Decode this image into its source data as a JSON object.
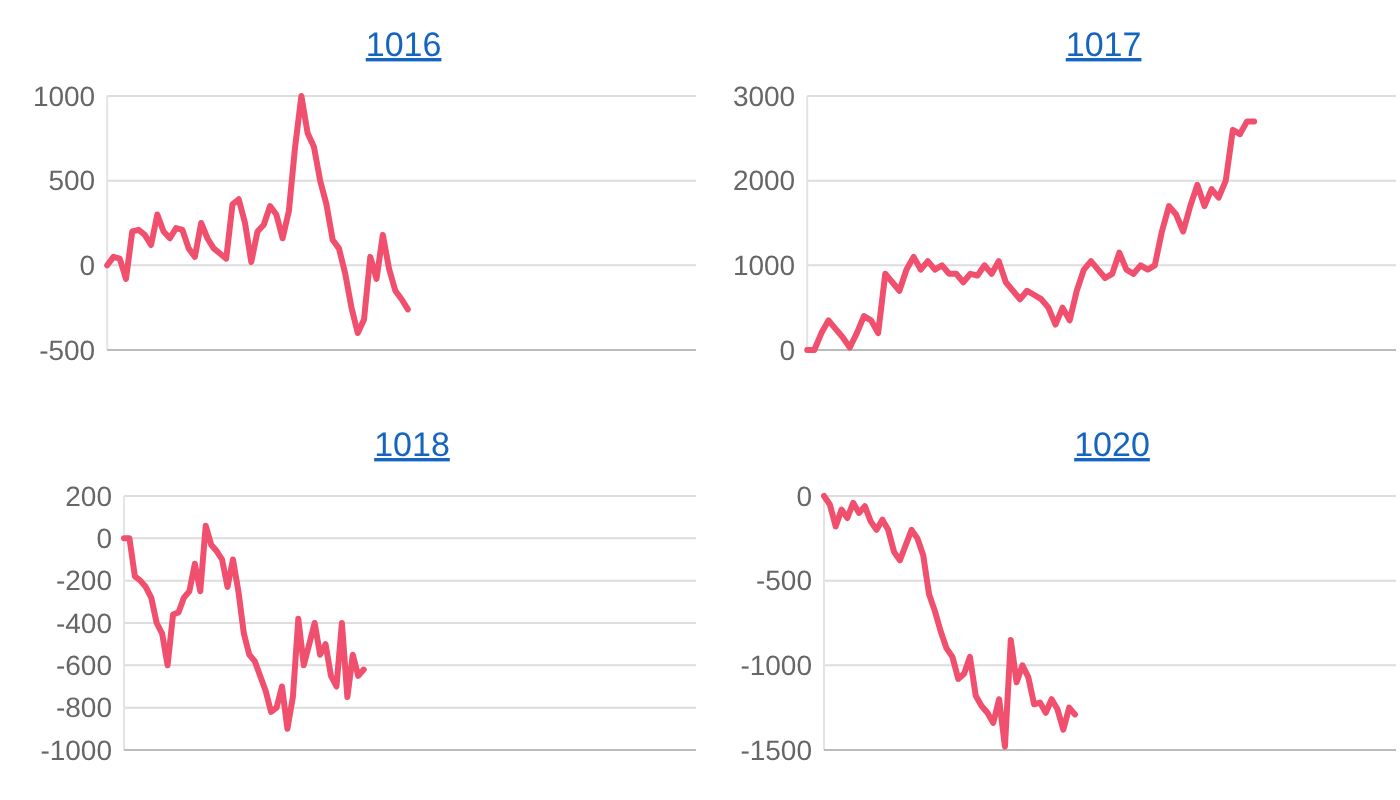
{
  "chart_data": [
    {
      "type": "line",
      "title": "1016",
      "categories": [
        null,
        null,
        null,
        null,
        null,
        null,
        null,
        null,
        null,
        null,
        null,
        null,
        null,
        null,
        null,
        null,
        null,
        null,
        null,
        null,
        null,
        null,
        null,
        null,
        null,
        null,
        null,
        null,
        null,
        null,
        null,
        null,
        null,
        null,
        null,
        null,
        null,
        null,
        null,
        null,
        null,
        null,
        null,
        null,
        null,
        null,
        null,
        null,
        null,
        null,
        null,
        null,
        null,
        null,
        null,
        null,
        null,
        null,
        null,
        null,
        null,
        null,
        null,
        null,
        null,
        null,
        null,
        null,
        null,
        null,
        null,
        null,
        null,
        null,
        null,
        null,
        null,
        null,
        null,
        null,
        null,
        null,
        null,
        null,
        null,
        null,
        null,
        null,
        null,
        null,
        null,
        null,
        null,
        null,
        null
      ],
      "series": [
        {
          "color": "#f0506e",
          "values": [
            0,
            50,
            40,
            -80,
            200,
            210,
            180,
            120,
            300,
            200,
            160,
            220,
            210,
            100,
            50,
            250,
            160,
            100,
            70,
            40,
            360,
            390,
            250,
            20,
            200,
            240,
            350,
            300,
            160,
            320,
            700,
            1000,
            780,
            700,
            500,
            360,
            150,
            100,
            -50,
            -250,
            -400,
            -320,
            50,
            -80,
            180,
            -20,
            -150,
            -200,
            -260,
            null,
            null,
            null,
            null,
            null,
            null,
            null,
            null,
            null,
            null,
            null,
            null,
            null,
            null,
            null,
            null,
            null,
            null,
            null,
            null,
            null,
            null,
            null,
            null,
            null,
            null,
            null,
            null,
            null,
            null,
            null,
            null,
            null,
            null,
            null,
            null,
            null,
            null,
            null,
            null,
            null,
            null,
            null,
            null,
            null,
            null
          ]
        }
      ],
      "ylim": [
        -500,
        1000
      ],
      "yticks": [
        -500,
        0,
        500,
        1000
      ],
      "grid": "y",
      "tick_labels": "y",
      "marker": "none",
      "line_style": "solid"
    },
    {
      "type": "line",
      "title": "1017",
      "categories": [
        null,
        null,
        null,
        null,
        null,
        null,
        null,
        null,
        null,
        null,
        null,
        null,
        null,
        null,
        null,
        null,
        null,
        null,
        null,
        null,
        null,
        null,
        null,
        null,
        null,
        null,
        null,
        null,
        null,
        null,
        null,
        null,
        null,
        null,
        null,
        null,
        null,
        null,
        null,
        null,
        null,
        null,
        null,
        null,
        null,
        null,
        null,
        null,
        null,
        null,
        null,
        null,
        null,
        null,
        null,
        null,
        null,
        null,
        null,
        null,
        null,
        null,
        null,
        null,
        null,
        null,
        null,
        null,
        null,
        null,
        null,
        null,
        null,
        null,
        null,
        null,
        null,
        null,
        null,
        null,
        null,
        null,
        null,
        null
      ],
      "series": [
        {
          "color": "#f0506e",
          "values": [
            0,
            0,
            200,
            350,
            250,
            150,
            30,
            200,
            400,
            350,
            200,
            900,
            800,
            700,
            950,
            1100,
            950,
            1050,
            950,
            1000,
            900,
            900,
            800,
            900,
            880,
            1000,
            900,
            1050,
            800,
            700,
            600,
            700,
            650,
            600,
            500,
            300,
            500,
            350,
            700,
            950,
            1050,
            950,
            850,
            900,
            1150,
            950,
            900,
            1000,
            950,
            1000,
            1400,
            1700,
            1600,
            1400,
            1700,
            1950,
            1700,
            1900,
            1800,
            2000,
            2600,
            2550,
            2700,
            2700,
            null,
            null,
            null,
            null,
            null,
            null,
            null,
            null,
            null,
            null,
            null,
            null,
            null,
            null,
            null,
            null,
            null,
            null,
            null,
            null
          ]
        }
      ],
      "ylim": [
        0,
        3000
      ],
      "yticks": [
        0,
        1000,
        2000,
        3000
      ],
      "grid": "y",
      "tick_labels": "y",
      "marker": "none",
      "line_style": "solid"
    },
    {
      "type": "line",
      "title": "1018",
      "categories": [
        null,
        null,
        null,
        null,
        null,
        null,
        null,
        null,
        null,
        null,
        null,
        null,
        null,
        null,
        null,
        null,
        null,
        null,
        null,
        null,
        null,
        null,
        null,
        null,
        null,
        null,
        null,
        null,
        null,
        null,
        null,
        null,
        null,
        null,
        null,
        null,
        null,
        null,
        null,
        null,
        null,
        null,
        null,
        null,
        null,
        null,
        null,
        null,
        null,
        null,
        null,
        null,
        null,
        null,
        null,
        null,
        null,
        null,
        null,
        null,
        null,
        null,
        null,
        null,
        null,
        null,
        null,
        null,
        null,
        null,
        null,
        null,
        null,
        null,
        null,
        null,
        null,
        null,
        null,
        null,
        null,
        null,
        null,
        null,
        null,
        null,
        null,
        null,
        null,
        null,
        null,
        null,
        null,
        null,
        null,
        null,
        null,
        null,
        null,
        null,
        null,
        null,
        null,
        null,
        null,
        null
      ],
      "series": [
        {
          "color": "#f0506e",
          "values": [
            0,
            0,
            -180,
            -200,
            -230,
            -280,
            -400,
            -450,
            -600,
            -360,
            -350,
            -280,
            -250,
            -120,
            -250,
            60,
            -30,
            -60,
            -100,
            -230,
            -100,
            -250,
            -450,
            -550,
            -580,
            -650,
            -720,
            -820,
            -800,
            -700,
            -900,
            -750,
            -380,
            -600,
            -500,
            -400,
            -550,
            -500,
            -650,
            -700,
            -400,
            -750,
            -550,
            -650,
            -620,
            null,
            null,
            null,
            null,
            null,
            null,
            null,
            null,
            null,
            null,
            null,
            null,
            null,
            null,
            null,
            null,
            null,
            null,
            null,
            null,
            null,
            null,
            null,
            null,
            null,
            null,
            null,
            null,
            null,
            null,
            null,
            null,
            null,
            null,
            null,
            null,
            null,
            null,
            null,
            null,
            null,
            null,
            null,
            null,
            null,
            null,
            null,
            null,
            null,
            null,
            null,
            null,
            null,
            null,
            null,
            null,
            null,
            null,
            null,
            null,
            null
          ]
        }
      ],
      "ylim": [
        -1000,
        200
      ],
      "yticks": [
        -1000,
        -800,
        -600,
        -400,
        -200,
        0,
        200
      ],
      "grid": "y",
      "tick_labels": "y",
      "marker": "none",
      "line_style": "solid"
    },
    {
      "type": "line",
      "title": "1020",
      "categories": [
        null,
        null,
        null,
        null,
        null,
        null,
        null,
        null,
        null,
        null,
        null,
        null,
        null,
        null,
        null,
        null,
        null,
        null,
        null,
        null,
        null,
        null,
        null,
        null,
        null,
        null,
        null,
        null,
        null,
        null,
        null,
        null,
        null,
        null,
        null,
        null,
        null,
        null,
        null,
        null,
        null,
        null,
        null,
        null,
        null,
        null,
        null,
        null,
        null,
        null,
        null,
        null,
        null,
        null,
        null,
        null,
        null,
        null,
        null,
        null,
        null,
        null,
        null,
        null,
        null,
        null,
        null,
        null,
        null,
        null,
        null,
        null,
        null,
        null,
        null,
        null,
        null,
        null,
        null,
        null,
        null,
        null,
        null,
        null,
        null,
        null,
        null,
        null,
        null,
        null,
        null,
        null,
        null,
        null,
        null,
        null,
        null,
        null,
        null
      ],
      "series": [
        {
          "color": "#f0506e",
          "values": [
            0,
            -50,
            -180,
            -80,
            -130,
            -40,
            -100,
            -60,
            -150,
            -200,
            -140,
            -200,
            -330,
            -380,
            -290,
            -200,
            -250,
            -350,
            -580,
            -680,
            -800,
            -900,
            -950,
            -1080,
            -1050,
            -950,
            -1180,
            -1240,
            -1280,
            -1340,
            -1200,
            -1480,
            -850,
            -1100,
            -1000,
            -1070,
            -1230,
            -1220,
            -1280,
            -1200,
            -1260,
            -1380,
            -1250,
            -1290,
            null,
            null,
            null,
            null,
            null,
            null,
            null,
            null,
            null,
            null,
            null,
            null,
            null,
            null,
            null,
            null,
            null,
            null,
            null,
            null,
            null,
            null,
            null,
            null,
            null,
            null,
            null,
            null,
            null,
            null,
            null,
            null,
            null,
            null,
            null,
            null,
            null,
            null,
            null,
            null,
            null,
            null,
            null,
            null,
            null,
            null,
            null,
            null,
            null,
            null,
            null,
            null,
            null,
            null,
            null
          ]
        }
      ],
      "ylim": [
        -1500,
        0
      ],
      "yticks": [
        -1500,
        -1000,
        -500,
        0
      ],
      "grid": "y",
      "tick_labels": "y",
      "marker": "none",
      "line_style": "solid"
    }
  ]
}
